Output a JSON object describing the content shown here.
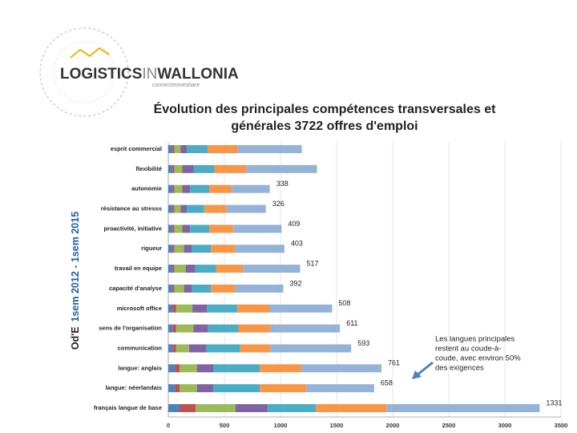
{
  "logo": {
    "word1": "LOGISTICS",
    "word2": "IN",
    "word3": "WALLONIA",
    "tagline": "connectmoveshare"
  },
  "side_label": {
    "source": "Od'E",
    "period": "1sem 2012 - 1sem 2015"
  },
  "chart_data": {
    "type": "bar",
    "orientation": "horizontal",
    "stacked": true,
    "title": [
      "Évolution des principales compétences transversales et",
      "générales  3722 offres d'emploi"
    ],
    "categories": [
      "esprit commercial",
      "flexibilité",
      "autonomie",
      "résistance au stresss",
      "proactivité, initiative",
      "rigueur",
      "travail en equipe",
      "capacité d'analyse",
      "microsoft office",
      "sens de l'organisation",
      "communication",
      "langue: anglais",
      "langue: néerlandais",
      "français langue de base"
    ],
    "series": [
      {
        "color": "#4f81bd",
        "values": [
          40,
          40,
          40,
          40,
          40,
          40,
          40,
          40,
          40,
          40,
          40,
          60,
          60,
          100
        ]
      },
      {
        "color": "#c0504d",
        "values": [
          15,
          15,
          15,
          15,
          15,
          15,
          15,
          15,
          30,
          30,
          30,
          40,
          40,
          145
        ]
      },
      {
        "color": "#9bbb59",
        "values": [
          55,
          70,
          70,
          55,
          70,
          85,
          100,
          85,
          145,
          155,
          115,
          155,
          155,
          355
        ]
      },
      {
        "color": "#8064a2",
        "values": [
          55,
          100,
          70,
          55,
          70,
          70,
          85,
          70,
          130,
          130,
          155,
          145,
          145,
          285
        ]
      },
      {
        "color": "#4bacc6",
        "values": [
          185,
          185,
          170,
          155,
          170,
          170,
          185,
          170,
          270,
          270,
          300,
          415,
          415,
          430
        ]
      },
      {
        "color": "#f79646",
        "values": [
          270,
          285,
          200,
          200,
          215,
          215,
          240,
          215,
          285,
          285,
          270,
          370,
          415,
          630
        ]
      },
      {
        "color": "#95b3d7",
        "values": [
          570,
          630,
          340,
          350,
          430,
          440,
          510,
          430,
          560,
          620,
          720,
          715,
          605,
          1365
        ]
      }
    ],
    "annotation_values": [
      null,
      null,
      338,
      326,
      409,
      403,
      517,
      392,
      508,
      611,
      593,
      761,
      658,
      1331
    ],
    "xlim": [
      0,
      3500
    ],
    "xticks": [
      0,
      500,
      1000,
      1500,
      2000,
      2500,
      3000,
      3500
    ],
    "grid": true,
    "note": [
      "Les langues principales",
      "restent au coude-à-",
      "coude, avec environ 50%",
      "des exigences"
    ]
  }
}
